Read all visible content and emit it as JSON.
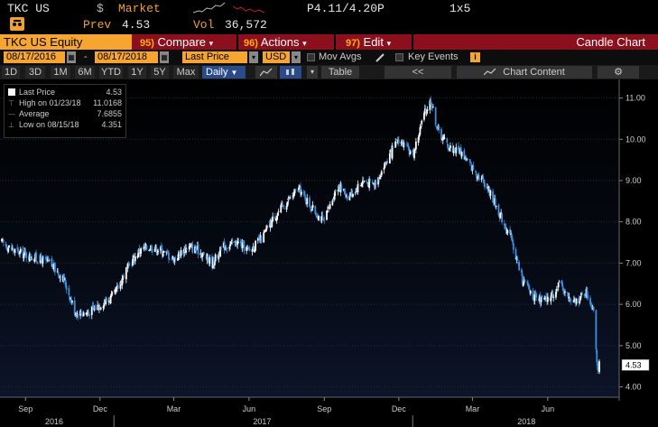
{
  "header": {
    "ticker": "TKC US",
    "currency": "$",
    "market_label": "Market",
    "prev_label": "Prev",
    "prev_value": "4.53",
    "vol_label": "Vol",
    "vol_value": "36,572",
    "quote": "P4.11/4.20P",
    "size": "1x5"
  },
  "command_bar": {
    "security": "TKC US Equity",
    "compare_num": "95)",
    "compare_label": "Compare",
    "actions_num": "96)",
    "actions_label": "Actions",
    "edit_num": "97)",
    "edit_label": "Edit",
    "chart_type": "Candle Chart"
  },
  "range_bar": {
    "start_date": "08/17/2016",
    "dash": "-",
    "end_date": "08/17/2018",
    "field": "Last Price",
    "currency": "USD",
    "mov_avgs": "Mov Avgs",
    "key_events": "Key Events"
  },
  "period_bar": {
    "periods": [
      "1D",
      "3D",
      "1M",
      "6M",
      "YTD",
      "1Y",
      "5Y",
      "Max"
    ],
    "frequency": "Daily",
    "table": "Table",
    "collapse": "<<",
    "chart_content": "Chart Content"
  },
  "legend": {
    "last_price_label": "Last Price",
    "last_price_value": "4.53",
    "high_label": "High on 01/23/18",
    "high_value": "11.0168",
    "average_label": "Average",
    "average_value": "7.6855",
    "low_label": "Low on 08/15/18",
    "low_value": "4.351"
  },
  "colors": {
    "up_candle": "#ffffff",
    "down_candle": "#3d8fe0",
    "brand_orange": "#f7a531",
    "command_bar_red": "#8c0f1d"
  },
  "chart_data": {
    "type": "candlestick",
    "series": [
      {
        "name": "Last Price"
      }
    ],
    "y_ticks": [
      "4.00",
      "5.00",
      "6.00",
      "7.00",
      "8.00",
      "9.00",
      "10.00",
      "11.00"
    ],
    "ylim": [
      3.75,
      11.45
    ],
    "x_tick_labels": [
      "Sep",
      "Dec",
      "Mar",
      "Jun",
      "Sep",
      "Dec",
      "Mar",
      "Jun"
    ],
    "year_labels": [
      "2016",
      "2017",
      "2018"
    ],
    "last_price_tag": "4.53",
    "x": [
      "2016-08-17",
      "2016-09-01",
      "2016-09-15",
      "2016-10-01",
      "2016-10-15",
      "2016-11-01",
      "2016-11-15",
      "2016-12-01",
      "2016-12-15",
      "2017-01-01",
      "2017-01-15",
      "2017-02-01",
      "2017-02-15",
      "2017-03-01",
      "2017-03-15",
      "2017-04-01",
      "2017-04-15",
      "2017-05-01",
      "2017-05-15",
      "2017-06-01",
      "2017-06-15",
      "2017-07-01",
      "2017-07-15",
      "2017-08-01",
      "2017-08-15",
      "2017-09-01",
      "2017-09-15",
      "2017-10-01",
      "2017-10-15",
      "2017-11-01",
      "2017-11-15",
      "2017-12-01",
      "2017-12-15",
      "2018-01-01",
      "2018-01-15",
      "2018-01-23",
      "2018-02-01",
      "2018-02-15",
      "2018-03-01",
      "2018-03-15",
      "2018-04-01",
      "2018-04-15",
      "2018-05-01",
      "2018-05-15",
      "2018-06-01",
      "2018-06-15",
      "2018-07-01",
      "2018-07-15",
      "2018-08-01",
      "2018-08-10",
      "2018-08-15",
      "2018-08-17"
    ],
    "y": [
      7.5,
      7.3,
      7.2,
      7.1,
      7.0,
      6.6,
      5.8,
      5.8,
      6.0,
      6.2,
      6.8,
      7.3,
      7.4,
      7.3,
      7.1,
      7.4,
      7.3,
      7.0,
      7.4,
      7.5,
      7.3,
      7.6,
      8.1,
      8.5,
      8.8,
      8.3,
      8.0,
      8.9,
      8.6,
      9.0,
      8.9,
      9.5,
      10.0,
      9.6,
      10.6,
      10.95,
      10.2,
      9.8,
      9.7,
      9.3,
      8.9,
      8.3,
      7.6,
      6.6,
      6.1,
      6.1,
      6.5,
      6.0,
      6.3,
      5.9,
      4.4,
      4.53
    ]
  }
}
